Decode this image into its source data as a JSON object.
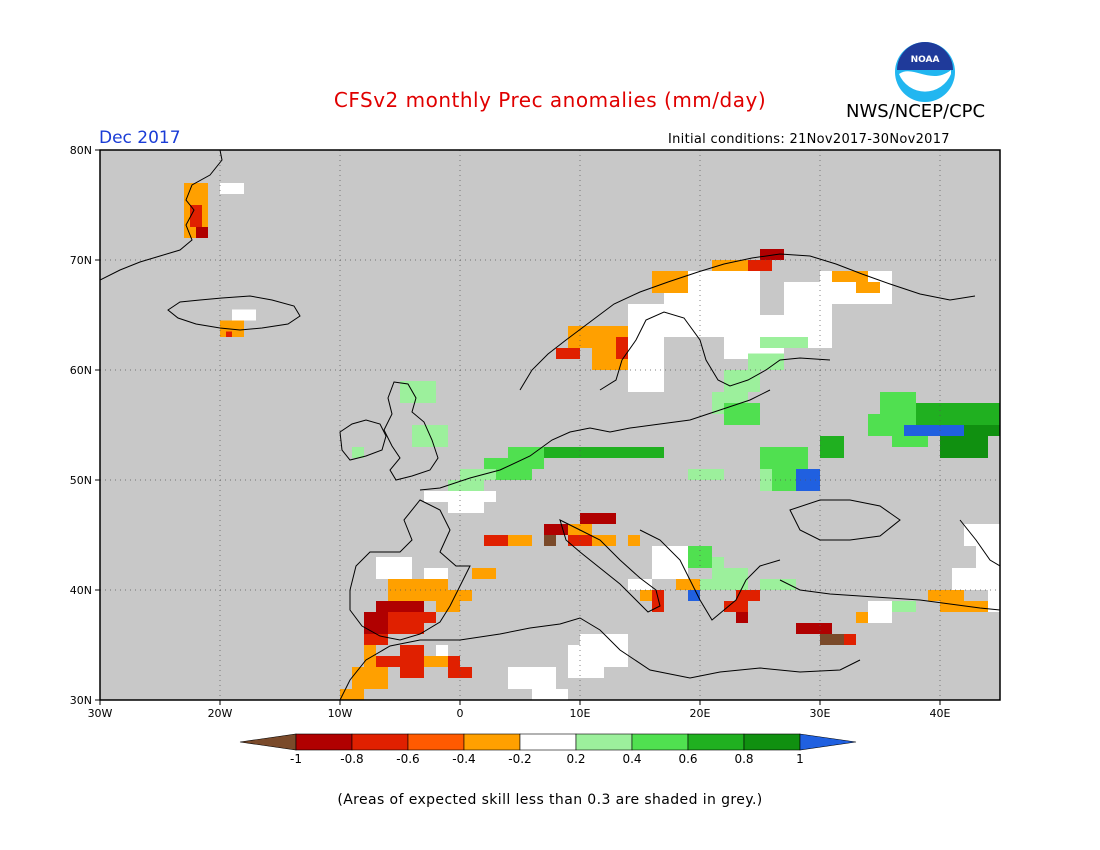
{
  "header": {
    "title": "CFSv2 monthly Prec anomalies (mm/day)",
    "agency": "NWS/NCEP/CPC",
    "logo_text": "NOAA",
    "valid_month": "Dec 2017",
    "initial_conditions": "Initial conditions: 21Nov2017-30Nov2017"
  },
  "map": {
    "lon_range": [
      -30,
      45
    ],
    "lat_range": [
      30,
      80
    ],
    "lat_labels": [
      "80N",
      "70N",
      "60N",
      "50N",
      "40N",
      "30N"
    ],
    "lon_labels": [
      "30W",
      "20W",
      "10W",
      "0",
      "10E",
      "20E",
      "30E",
      "40E"
    ],
    "background_color": "#c8c8c8"
  },
  "legend": {
    "labels": [
      "-1",
      "-0.8",
      "-0.6",
      "-0.4",
      "-0.2",
      "0.2",
      "0.4",
      "0.6",
      "0.8",
      "1"
    ],
    "colors": [
      "#7a4a2a",
      "#b00000",
      "#e02000",
      "#ff5a00",
      "#ffa000",
      "#ffffff",
      "#9cf09c",
      "#50e050",
      "#20b020",
      "#109010",
      "#2060e0"
    ]
  },
  "footnote": "(Areas of expected skill less than 0.3 are shaded in grey.)"
}
